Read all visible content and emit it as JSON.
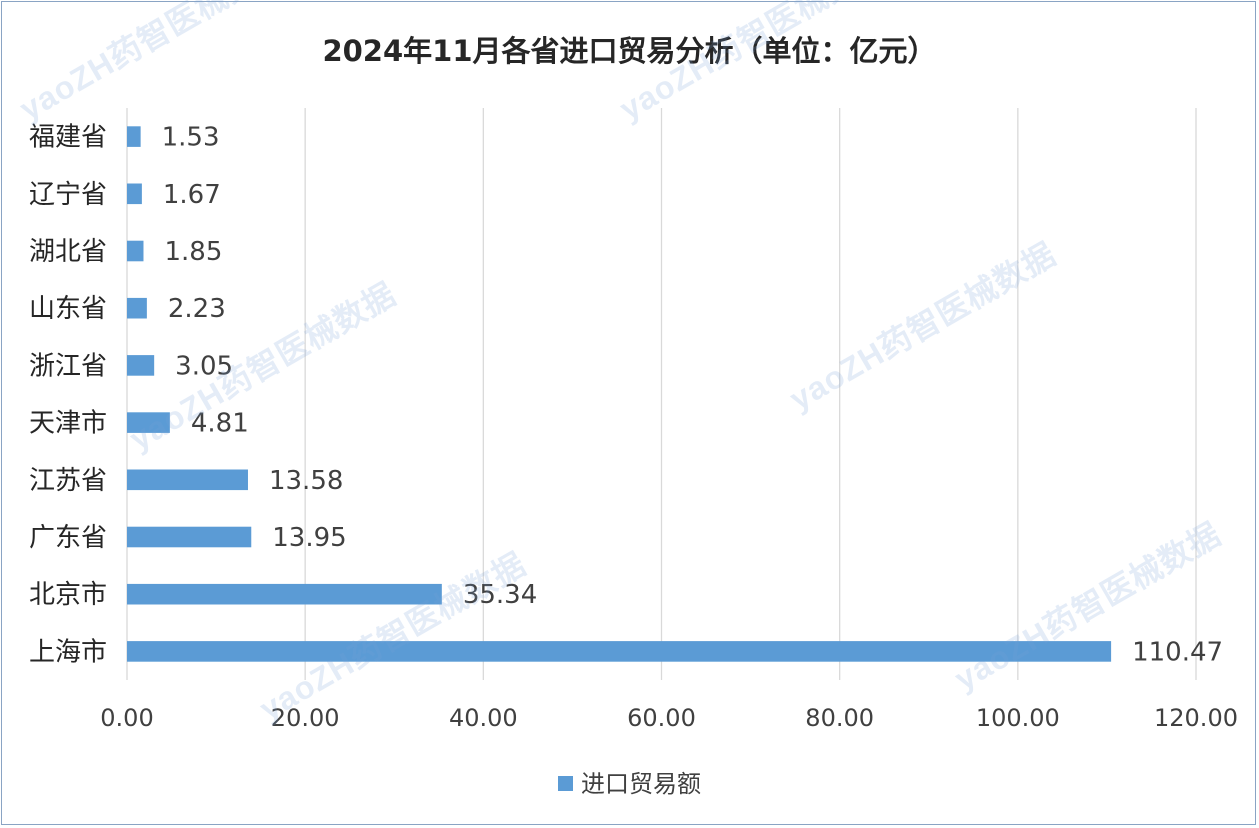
{
  "chart_data": {
    "type": "bar",
    "orientation": "horizontal",
    "title": "2024年11月各省进口贸易分析（单位：亿元）",
    "categories": [
      "上海市",
      "北京市",
      "广东省",
      "江苏省",
      "天津市",
      "浙江省",
      "山东省",
      "湖北省",
      "辽宁省",
      "福建省"
    ],
    "series": [
      {
        "name": "进口贸易额",
        "values": [
          110.47,
          35.34,
          13.95,
          13.58,
          4.81,
          3.05,
          2.23,
          1.85,
          1.67,
          1.53
        ],
        "color": "#5b9bd5"
      }
    ],
    "data_labels": [
      "110.47",
      "35.34",
      "13.95",
      "13.58",
      "4.81",
      "3.05",
      "2.23",
      "1.85",
      "1.67",
      "1.53"
    ],
    "x_ticks": [
      "0.00",
      "20.00",
      "40.00",
      "60.00",
      "80.00",
      "100.00",
      "120.00"
    ],
    "xlim": [
      0,
      120
    ],
    "grid": true,
    "legend_position": "bottom",
    "xlabel": "",
    "ylabel": ""
  },
  "legend": {
    "label": "进口贸易额"
  },
  "watermark": {
    "text": "yaoZH药智医械数据"
  }
}
